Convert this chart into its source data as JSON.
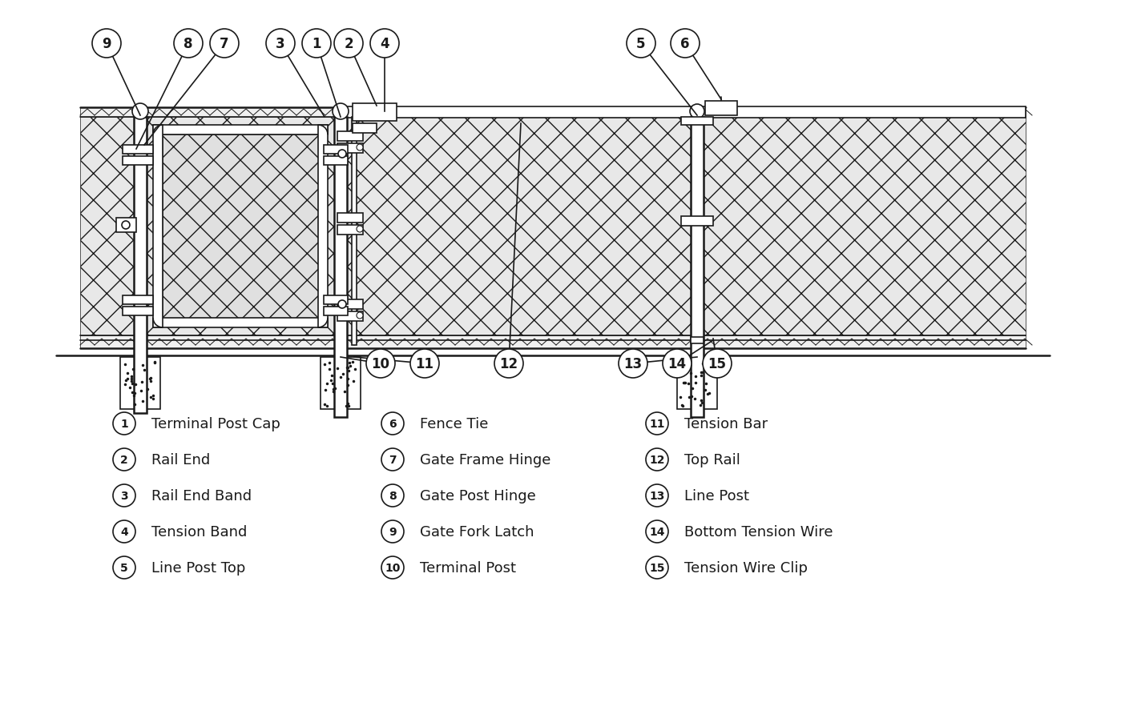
{
  "bg_color": "#ffffff",
  "line_color": "#1a1a1a",
  "legend_items_col1": [
    {
      "num": "1",
      "label": "Terminal Post Cap"
    },
    {
      "num": "2",
      "label": "Rail End"
    },
    {
      "num": "3",
      "label": "Rail End Band"
    },
    {
      "num": "4",
      "label": "Tension Band"
    },
    {
      "num": "5",
      "label": "Line Post Top"
    }
  ],
  "legend_items_col2": [
    {
      "num": "6",
      "label": "Fence Tie"
    },
    {
      "num": "7",
      "label": "Gate Frame Hinge"
    },
    {
      "num": "8",
      "label": "Gate Post Hinge"
    },
    {
      "num": "9",
      "label": "Gate Fork Latch"
    },
    {
      "num": "10",
      "label": "Terminal Post"
    }
  ],
  "legend_items_col3": [
    {
      "num": "11",
      "label": "Tension Bar"
    },
    {
      "num": "12",
      "label": "Top Rail"
    },
    {
      "num": "13",
      "label": "Line Post"
    },
    {
      "num": "14",
      "label": "Bottom Tension Wire"
    },
    {
      "num": "15",
      "label": "Tension Wire Clip"
    }
  ]
}
